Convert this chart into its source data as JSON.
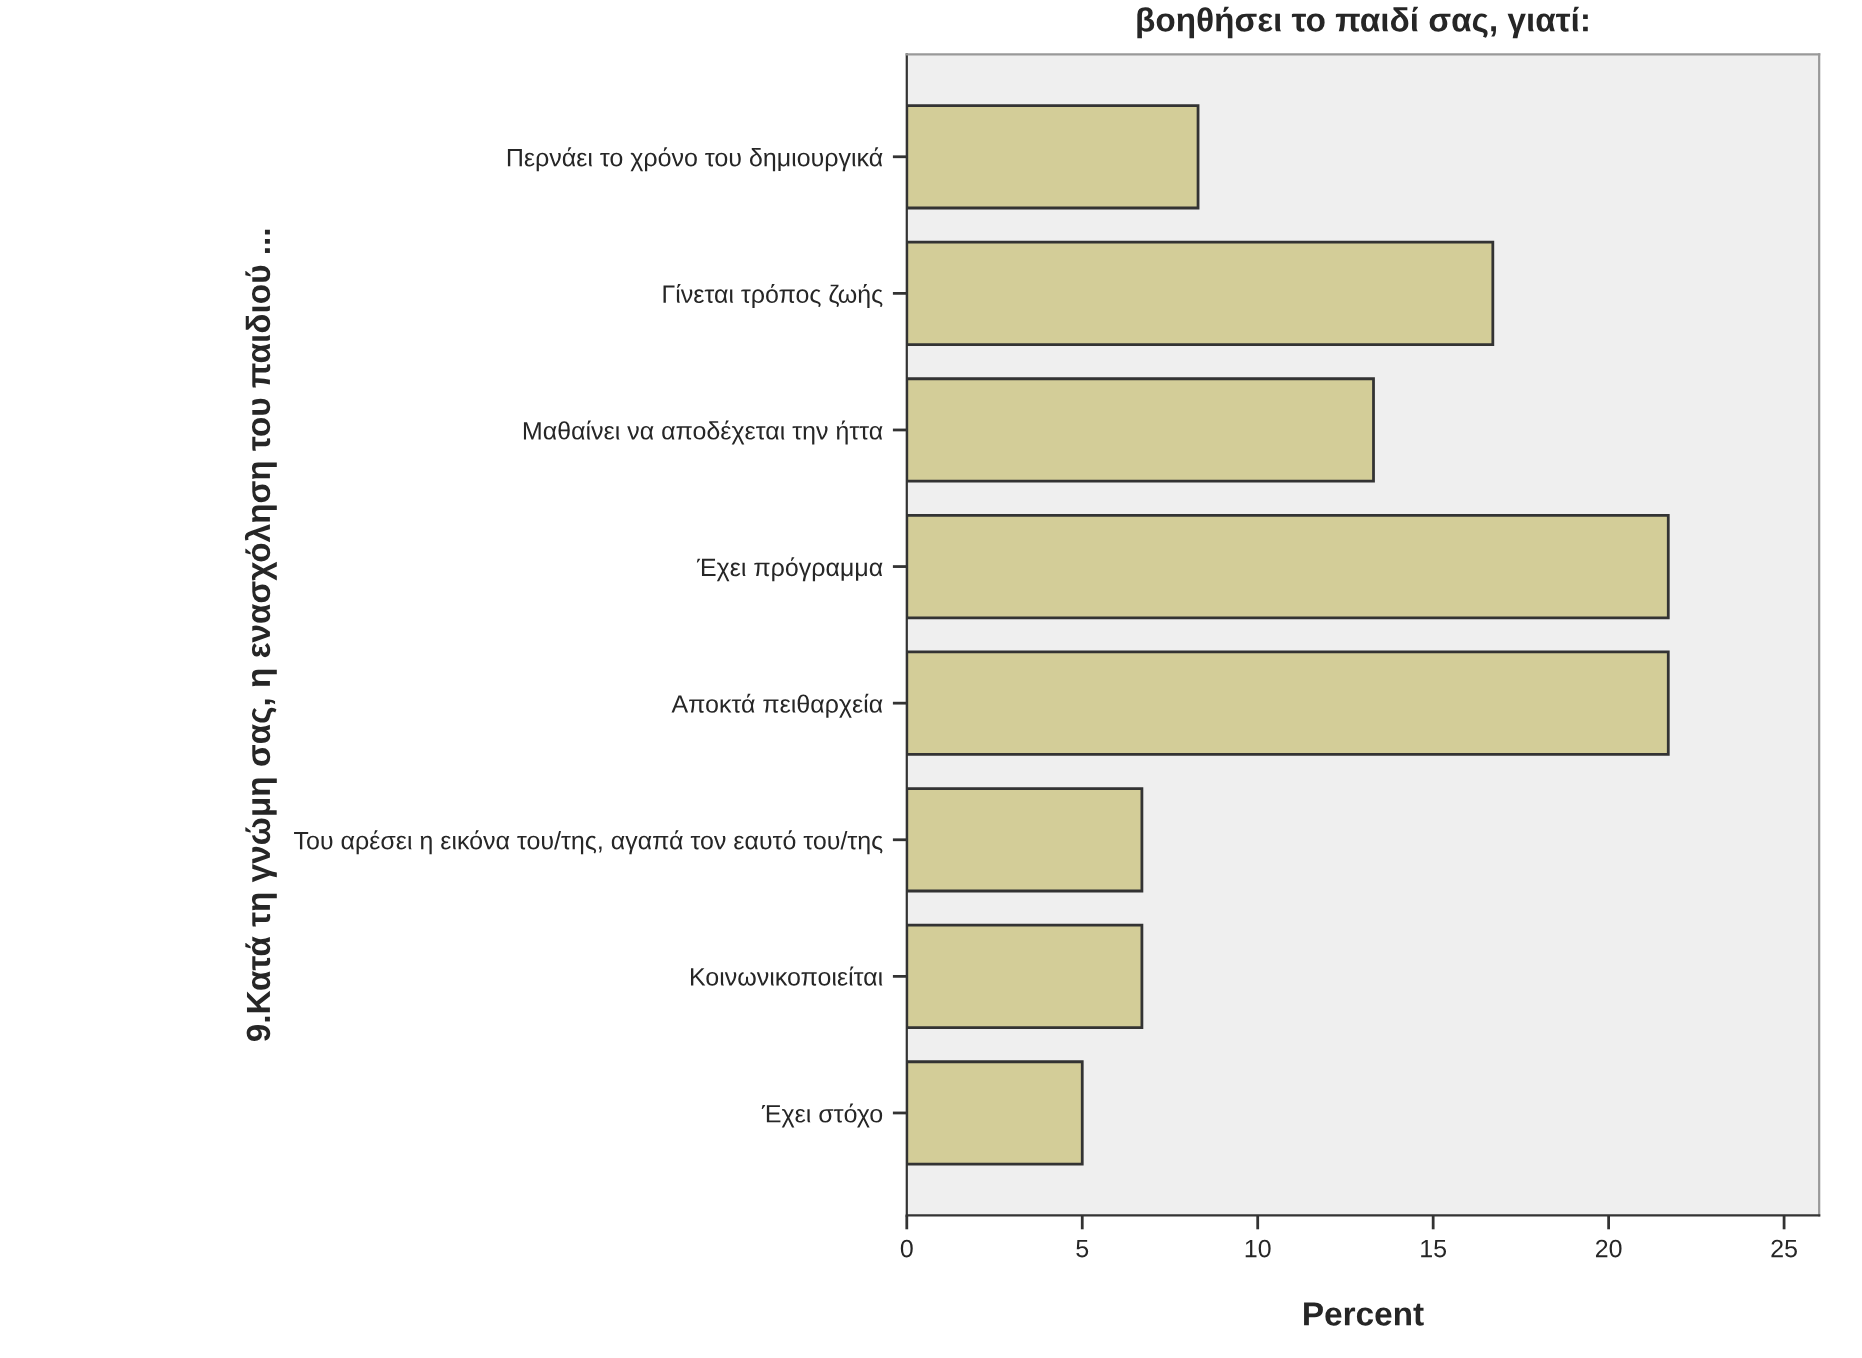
{
  "chart_data": {
    "type": "bar",
    "orientation": "horizontal",
    "title": "βοηθήσει το παιδί σας, γιατί:",
    "xlabel": "Percent",
    "ylabel": "9.Κατά τη γνώμη σας, η ενασχόληση του παιδιού ...",
    "categories": [
      "Περνάει το χρόνο του δημιουργικά",
      "Γίνεται τρόπος ζωής",
      "Μαθαίνει να αποδέχεται την ήττα",
      "Έχει πρόγραμμα",
      "Αποκτά πειθαρχεία",
      "Του αρέσει η εικόνα του/της, αγαπά τον εαυτό του/της",
      "Κοινωνικοποιείται",
      "Έχει στόχο"
    ],
    "values": [
      8.3,
      16.7,
      13.3,
      21.7,
      21.7,
      6.7,
      6.7,
      5.0
    ],
    "color": "#d3cd98",
    "xlim": [
      0,
      26
    ],
    "xticks": [
      0,
      5,
      10,
      15,
      20,
      25
    ],
    "grid": false,
    "legend": false
  }
}
